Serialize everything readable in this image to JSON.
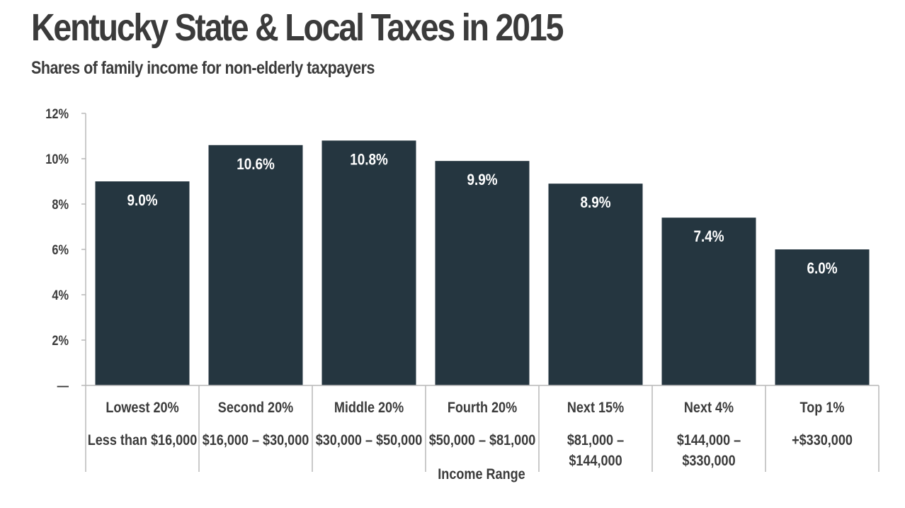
{
  "title": "Kentucky State & Local Taxes in 2015",
  "subtitle": "Shares of family income for non-elderly taxpayers",
  "chart_data": {
    "type": "bar",
    "title": "Kentucky State & Local Taxes in 2015",
    "subtitle": "Shares of family income for non-elderly taxpayers",
    "xlabel": "Income Range",
    "ylabel": "",
    "ylim": [
      0,
      12
    ],
    "yticks": [
      {
        "value": 12,
        "label": "12%"
      },
      {
        "value": 10,
        "label": "10%"
      },
      {
        "value": 8,
        "label": "8%"
      },
      {
        "value": 6,
        "label": "6%"
      },
      {
        "value": 4,
        "label": "4%"
      },
      {
        "value": 2,
        "label": "2%"
      },
      {
        "value": 0,
        "label": "—"
      }
    ],
    "categories": [
      "Lowest 20%",
      "Second 20%",
      "Middle 20%",
      "Fourth 20%",
      "Next 15%",
      "Next 4%",
      "Top 1%"
    ],
    "income_ranges": [
      [
        "Less than $16,000"
      ],
      [
        "$16,000 – $30,000"
      ],
      [
        "$30,000 – $50,000"
      ],
      [
        "$50,000 – $81,000"
      ],
      [
        "$81,000 –",
        "$144,000"
      ],
      [
        "$144,000 –",
        "$330,000"
      ],
      [
        "+$330,000"
      ]
    ],
    "values": [
      9.0,
      10.6,
      10.8,
      9.9,
      8.9,
      7.4,
      6.0
    ],
    "value_labels": [
      "9.0%",
      "10.6%",
      "10.8%",
      "9.9%",
      "8.9%",
      "7.4%",
      "6.0%"
    ],
    "grid": false,
    "colors": {
      "bar": "#253640",
      "bar_label": "#ffffff",
      "text": "#3b3b3b",
      "axis": "#b9b9b9"
    }
  }
}
